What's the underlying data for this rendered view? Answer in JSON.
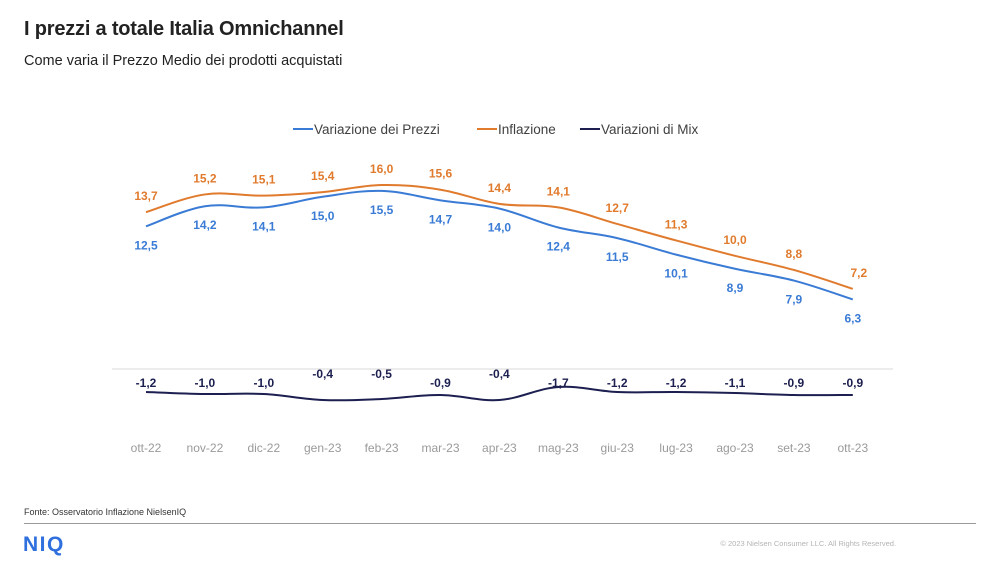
{
  "header": {
    "title": "I prezzi a totale Italia Omnichannel",
    "subtitle": "Come varia il Prezzo Medio dei prodotti acquistati"
  },
  "footer": {
    "source": "Fonte: Osservatorio Inflazione NielsenIQ",
    "logo": "NIQ",
    "copyright": "© 2023 Nielsen Consumer LLC. All Rights Reserved."
  },
  "chart_data": {
    "type": "line",
    "categories": [
      "ott-22",
      "nov-22",
      "dic-22",
      "gen-23",
      "feb-23",
      "mar-23",
      "apr-23",
      "mag-23",
      "giu-23",
      "lug-23",
      "ago-23",
      "set-23",
      "ott-23"
    ],
    "legend_position": "top",
    "grid": false,
    "series": [
      {
        "name": "Variazione dei Prezzi",
        "color": "#3a7bd5",
        "values": [
          12.5,
          14.2,
          14.1,
          15.0,
          15.5,
          14.7,
          14.0,
          12.4,
          11.5,
          10.1,
          8.9,
          7.9,
          6.3
        ],
        "labels": [
          "12,5",
          "14,2",
          "14,1",
          "15,0",
          "15,5",
          "14,7",
          "14,0",
          "12,4",
          "11,5",
          "10,1",
          "8,9",
          "7,9",
          "6,3"
        ]
      },
      {
        "name": "Inflazione",
        "color": "#e07b2e",
        "values": [
          13.7,
          15.2,
          15.1,
          15.4,
          16.0,
          15.6,
          14.4,
          14.1,
          12.7,
          11.3,
          10.0,
          8.8,
          7.2
        ],
        "labels": [
          "13,7",
          "15,2",
          "15,1",
          "15,4",
          "16,0",
          "15,6",
          "14,4",
          "14,1",
          "12,7",
          "11,3",
          "10,0",
          "8,8",
          "7,2"
        ]
      },
      {
        "name": "Variazioni di Mix",
        "color": "#1c1f4f",
        "values": [
          -1.2,
          -1.0,
          -1.0,
          -0.4,
          -0.5,
          -0.9,
          -0.4,
          -1.7,
          -1.2,
          -1.2,
          -1.1,
          -0.9,
          -0.9
        ],
        "labels": [
          "-1,2",
          "-1,0",
          "-1,0",
          "-0,4",
          "-0,5",
          "-0,9",
          "-0,4",
          "-1,7",
          "-1,2",
          "-1,2",
          "-1,1",
          "-0,9",
          "-0,9"
        ]
      }
    ]
  }
}
